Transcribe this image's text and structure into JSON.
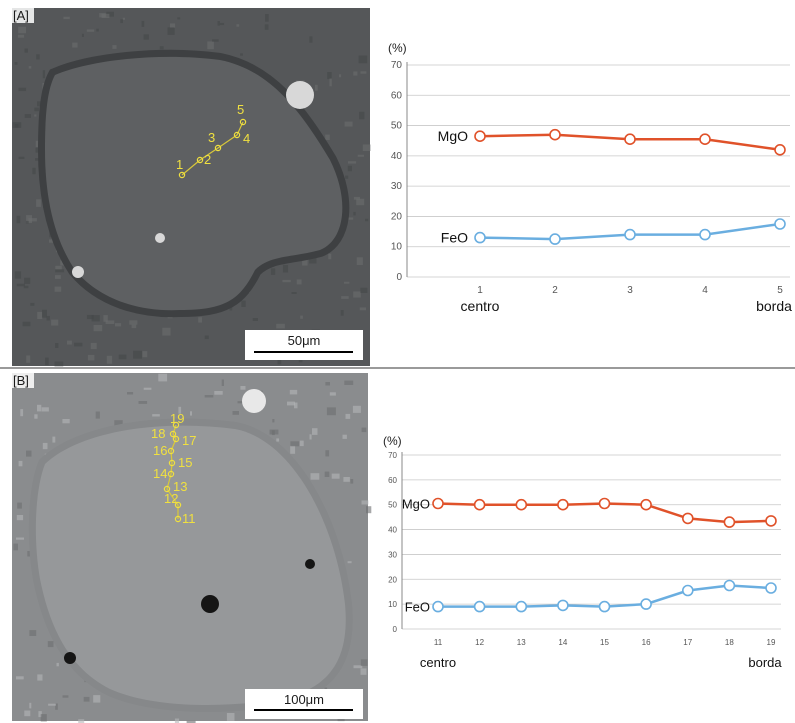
{
  "panels": [
    {
      "panel_label": "[A]",
      "scale_bar_label": "50μm",
      "spots": [
        {
          "label": "1"
        },
        {
          "label": "2"
        },
        {
          "label": "3"
        },
        {
          "label": "4"
        },
        {
          "label": "5"
        }
      ]
    },
    {
      "panel_label": "[B]",
      "scale_bar_label": "100μm",
      "spots": [
        {
          "label": "11"
        },
        {
          "label": "12"
        },
        {
          "label": "13"
        },
        {
          "label": "14"
        },
        {
          "label": "15"
        },
        {
          "label": "16"
        },
        {
          "label": "17"
        },
        {
          "label": "18"
        },
        {
          "label": "19"
        }
      ]
    }
  ],
  "colors": {
    "mgo": "#e0522a",
    "feo": "#6aaee0",
    "grid": "#c8c8c8",
    "spot": "#f0e040"
  },
  "chart_data": [
    {
      "type": "line",
      "ylabel": "(%)",
      "ylim": [
        0,
        70
      ],
      "yticks": [
        0,
        10,
        20,
        30,
        40,
        50,
        60,
        70
      ],
      "x": [
        "1",
        "2",
        "3",
        "4",
        "5"
      ],
      "x_start_label": "centro",
      "x_end_label": "borda",
      "grid": true,
      "series": [
        {
          "name": "MgO",
          "values": [
            46.5,
            47,
            45.5,
            45.5,
            42
          ],
          "color": "#e0522a"
        },
        {
          "name": "FeO",
          "values": [
            13,
            12.5,
            14,
            14,
            17.5
          ],
          "color": "#6aaee0"
        }
      ]
    },
    {
      "type": "line",
      "ylabel": "(%)",
      "ylim": [
        0,
        70
      ],
      "yticks": [
        0,
        10,
        20,
        30,
        40,
        50,
        60,
        70
      ],
      "x": [
        "11",
        "12",
        "13",
        "14",
        "15",
        "16",
        "17",
        "18",
        "19"
      ],
      "x_start_label": "centro",
      "x_end_label": "borda",
      "grid": true,
      "series": [
        {
          "name": "MgO",
          "values": [
            50.5,
            50,
            50,
            50,
            50.5,
            50,
            44.5,
            43,
            43.5
          ],
          "color": "#e0522a"
        },
        {
          "name": "FeO",
          "values": [
            9,
            9,
            9,
            9.5,
            9,
            10,
            15.5,
            17.5,
            16.5
          ],
          "color": "#6aaee0"
        }
      ]
    }
  ]
}
